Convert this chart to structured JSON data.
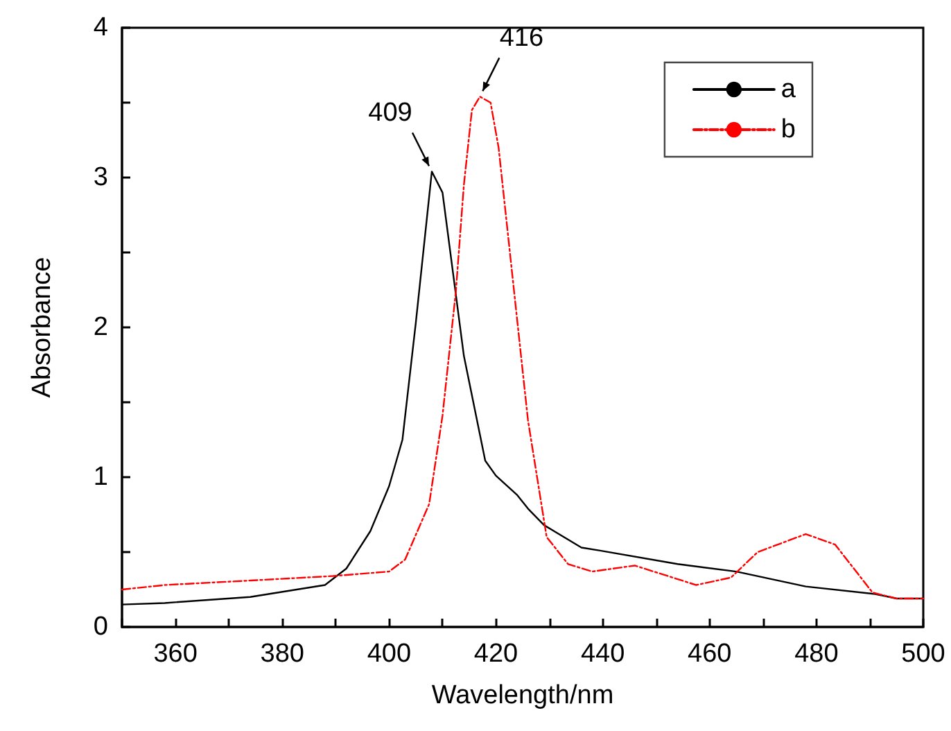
{
  "chart_data": {
    "type": "line",
    "xlabel": "Wavelength/nm",
    "ylabel": "Absorbance",
    "xlim": [
      350,
      500
    ],
    "ylim": [
      0,
      4
    ],
    "xticks": [
      {
        "value": 350,
        "label": null
      },
      360,
      {
        "value": 370,
        "label": null
      },
      380,
      {
        "value": 390,
        "label": null
      },
      400,
      {
        "value": 410,
        "label": null
      },
      420,
      {
        "value": 430,
        "label": null
      },
      440,
      {
        "value": 450,
        "label": null
      },
      460,
      {
        "value": 470,
        "label": null
      },
      480,
      {
        "value": 490,
        "label": null
      },
      500
    ],
    "yticks": [
      0,
      {
        "value": 0.5,
        "label": null
      },
      1,
      {
        "value": 1.5,
        "label": null
      },
      2,
      {
        "value": 2.5,
        "label": null
      },
      3,
      {
        "value": 3.5,
        "label": null
      },
      4
    ],
    "grid": false,
    "legend": "top right",
    "marker": "none",
    "annotations": [
      {
        "text": "409",
        "x": 408,
        "y": 3.04
      },
      {
        "text": "416",
        "x": 417,
        "y": 3.54
      }
    ],
    "series": [
      {
        "name": "a",
        "color": "#000000",
        "line_style": "solid",
        "x": [
          350,
          358,
          374,
          388,
          392,
          396.5,
          400,
          402.5,
          405,
          408,
          410,
          414,
          418,
          420,
          424,
          426,
          429,
          436,
          439.5,
          454,
          465,
          478,
          491,
          495,
          500
        ],
        "values": [
          0.15,
          0.16,
          0.2,
          0.28,
          0.39,
          0.64,
          0.94,
          1.25,
          2.03,
          3.04,
          2.9,
          1.81,
          1.11,
          1.01,
          0.88,
          0.79,
          0.68,
          0.53,
          0.51,
          0.42,
          0.37,
          0.27,
          0.22,
          0.19,
          0.19
        ]
      },
      {
        "name": "b",
        "color": "#ff0000",
        "line_style": "dashed",
        "x": [
          350,
          358,
          374,
          389.5,
          400,
          403,
          407.5,
          410,
          412.5,
          414,
          415.5,
          417,
          419,
          420.5,
          426,
          429.5,
          433.5,
          438,
          446,
          457.5,
          464,
          469,
          478,
          483.5,
          490.5,
          495,
          500
        ],
        "values": [
          0.25,
          0.28,
          0.31,
          0.34,
          0.37,
          0.45,
          0.82,
          1.41,
          2.24,
          2.95,
          3.45,
          3.54,
          3.5,
          3.2,
          1.38,
          0.6,
          0.42,
          0.37,
          0.41,
          0.28,
          0.33,
          0.5,
          0.62,
          0.55,
          0.23,
          0.19,
          0.19
        ]
      }
    ]
  }
}
